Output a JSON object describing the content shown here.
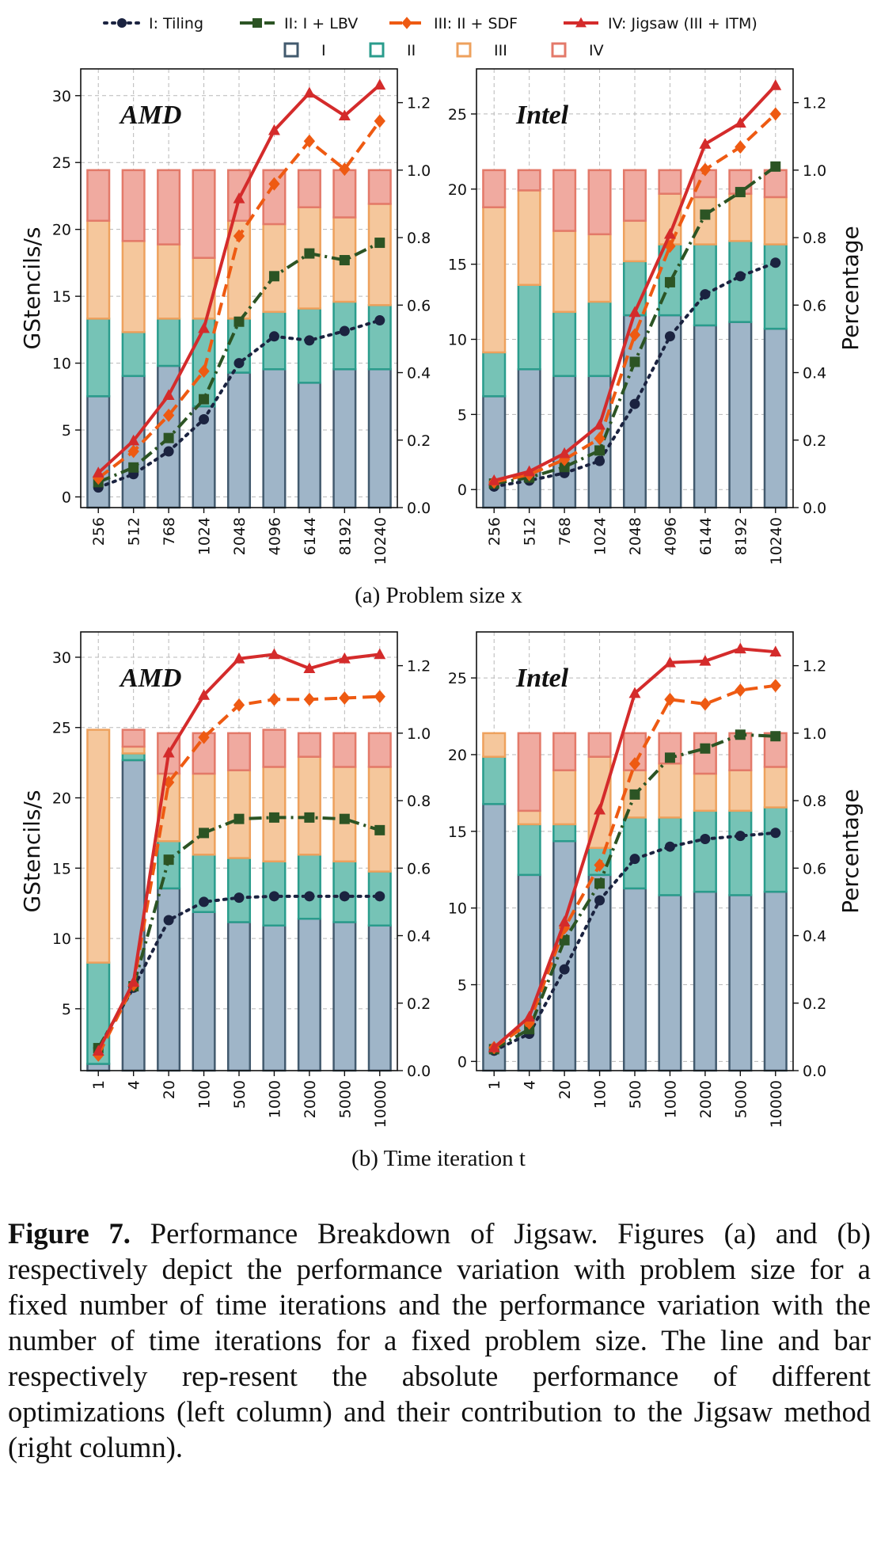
{
  "legend": {
    "lines": [
      {
        "name": "I: Tiling",
        "color": "#1b2340",
        "dash": "3,7",
        "marker": "circle"
      },
      {
        "name": "II: I + LBV",
        "color": "#2c5424",
        "dash": "16,6,3,6",
        "marker": "square"
      },
      {
        "name": "III: II + SDF",
        "color": "#ee5a12",
        "dash": "16,8",
        "marker": "diamond"
      },
      {
        "name": "IV: Jigsaw (III + ITM)",
        "color": "#d42b2b",
        "dash": "",
        "marker": "triangle"
      }
    ],
    "bars": [
      {
        "name": "I",
        "fill": "#9fb5c8",
        "edge": "#425a6e"
      },
      {
        "name": "II",
        "fill": "#76c3b6",
        "edge": "#2a9c8c"
      },
      {
        "name": "III",
        "fill": "#f5c79c",
        "edge": "#eea15d"
      },
      {
        "name": "IV",
        "fill": "#f0aaa0",
        "edge": "#e37969"
      }
    ]
  },
  "subcaptions": {
    "a": "(a) Problem size x",
    "b": "(b) Time iteration t"
  },
  "caption": {
    "label": "Figure 7.",
    "text": "Performance Breakdown of Jigsaw. Figures (a) and (b) respectively depict the performance variation with problem size for a fixed number of time iterations and the performance variation with the number of time iterations for a fixed problem size. The line and bar respectively rep-resent the absolute performance of different optimizations (left column) and their contribution to the Jigsaw method (right column)."
  },
  "chart_data": [
    {
      "type": "bar+line",
      "title": "AMD",
      "ylabel": "GStencils/s",
      "y2label": "",
      "categories": [
        "256",
        "512",
        "768",
        "1024",
        "2048",
        "4096",
        "6144",
        "8192",
        "10240"
      ],
      "ylim": [
        -0.8,
        32
      ],
      "yticks": [
        0,
        5,
        10,
        15,
        20,
        25,
        30
      ],
      "y2lim": [
        0,
        1.3
      ],
      "y2ticks": [
        0.0,
        0.2,
        0.4,
        0.6,
        0.8,
        1.0,
        1.2
      ],
      "grid": true,
      "lines": [
        {
          "name": "I: Tiling",
          "values": [
            0.7,
            1.7,
            3.4,
            5.8,
            10.0,
            12.0,
            11.7,
            12.4,
            13.2
          ]
        },
        {
          "name": "II: I + LBV",
          "values": [
            1.1,
            2.2,
            4.4,
            7.3,
            13.1,
            16.5,
            18.2,
            17.7,
            19.0
          ]
        },
        {
          "name": "III: II + SDF",
          "values": [
            1.4,
            3.4,
            6.1,
            9.4,
            19.5,
            23.4,
            26.6,
            24.5,
            28.1
          ]
        },
        {
          "name": "IV: Jigsaw (III + ITM)",
          "values": [
            1.8,
            4.2,
            7.6,
            12.6,
            22.3,
            27.4,
            30.2,
            28.5,
            30.8
          ]
        }
      ],
      "bars": [
        {
          "name": "I",
          "values": [
            0.33,
            0.39,
            0.42,
            0.3,
            0.4,
            0.41,
            0.37,
            0.41,
            0.41
          ]
        },
        {
          "name": "II",
          "values": [
            0.23,
            0.13,
            0.14,
            0.26,
            0.16,
            0.17,
            0.22,
            0.2,
            0.19
          ]
        },
        {
          "name": "III",
          "values": [
            0.29,
            0.27,
            0.22,
            0.18,
            0.29,
            0.26,
            0.3,
            0.25,
            0.3
          ]
        },
        {
          "name": "IV",
          "values": [
            0.15,
            0.21,
            0.22,
            0.26,
            0.15,
            0.16,
            0.11,
            0.14,
            0.1
          ]
        }
      ]
    },
    {
      "type": "bar+line",
      "title": "Intel",
      "ylabel": "",
      "y2label": "Percentage",
      "categories": [
        "256",
        "512",
        "768",
        "1024",
        "2048",
        "4096",
        "6144",
        "8192",
        "10240"
      ],
      "ylim": [
        -1.2,
        28
      ],
      "yticks": [
        0,
        5,
        10,
        15,
        20,
        25
      ],
      "y2lim": [
        0,
        1.3
      ],
      "y2ticks": [
        0.0,
        0.2,
        0.4,
        0.6,
        0.8,
        1.0,
        1.2
      ],
      "grid": true,
      "lines": [
        {
          "name": "I: Tiling",
          "values": [
            0.2,
            0.6,
            1.1,
            1.9,
            5.7,
            10.2,
            13.0,
            14.2,
            15.1
          ]
        },
        {
          "name": "II: I + LBV",
          "values": [
            0.4,
            0.8,
            1.5,
            2.6,
            8.5,
            13.8,
            18.3,
            19.8,
            21.5
          ]
        },
        {
          "name": "III: II + SDF",
          "values": [
            0.5,
            1.0,
            2.0,
            3.4,
            10.3,
            16.2,
            21.3,
            22.8,
            25.0
          ]
        },
        {
          "name": "IV: Jigsaw (III + ITM)",
          "values": [
            0.6,
            1.2,
            2.4,
            4.3,
            11.8,
            17.0,
            23.0,
            24.4,
            26.9
          ]
        }
      ],
      "bars": [
        {
          "name": "I",
          "values": [
            0.33,
            0.41,
            0.39,
            0.39,
            0.57,
            0.57,
            0.54,
            0.55,
            0.53
          ]
        },
        {
          "name": "II",
          "values": [
            0.13,
            0.25,
            0.19,
            0.22,
            0.16,
            0.21,
            0.24,
            0.24,
            0.25
          ]
        },
        {
          "name": "III",
          "values": [
            0.43,
            0.28,
            0.24,
            0.2,
            0.12,
            0.15,
            0.14,
            0.14,
            0.14
          ]
        },
        {
          "name": "IV",
          "values": [
            0.11,
            0.06,
            0.18,
            0.19,
            0.15,
            0.07,
            0.08,
            0.07,
            0.08
          ]
        }
      ]
    },
    {
      "type": "bar+line",
      "title": "AMD",
      "ylabel": "GStencils/s",
      "y2label": "",
      "categories": [
        "1",
        "4",
        "20",
        "100",
        "500",
        "1000",
        "2000",
        "5000",
        "10000"
      ],
      "ylim": [
        0.6,
        31.8
      ],
      "yticks": [
        5,
        10,
        15,
        20,
        25,
        30
      ],
      "y2lim": [
        0,
        1.3
      ],
      "y2ticks": [
        0.0,
        0.2,
        0.4,
        0.6,
        0.8,
        1.0,
        1.2
      ],
      "grid": true,
      "lines": [
        {
          "name": "I: Tiling",
          "values": [
            2.2,
            6.5,
            11.3,
            12.6,
            12.9,
            13.0,
            13.0,
            13.0,
            13.0
          ]
        },
        {
          "name": "II: I + LBV",
          "values": [
            2.2,
            6.6,
            15.6,
            17.5,
            18.5,
            18.6,
            18.6,
            18.5,
            17.7
          ]
        },
        {
          "name": "III: II + SDF",
          "values": [
            1.7,
            6.7,
            21.1,
            24.3,
            26.6,
            27.0,
            27.0,
            27.1,
            27.2
          ]
        },
        {
          "name": "IV: Jigsaw (III + ITM)",
          "values": [
            2.0,
            6.9,
            23.2,
            27.3,
            29.9,
            30.2,
            29.2,
            29.9,
            30.2
          ]
        }
      ],
      "bars": [
        {
          "name": "I",
          "values": [
            0.02,
            0.92,
            0.54,
            0.47,
            0.44,
            0.43,
            0.45,
            0.44,
            0.43
          ]
        },
        {
          "name": "II",
          "values": [
            0.3,
            0.02,
            0.14,
            0.17,
            0.19,
            0.19,
            0.19,
            0.18,
            0.16
          ]
        },
        {
          "name": "III",
          "values": [
            0.69,
            0.02,
            0.2,
            0.24,
            0.26,
            0.28,
            0.29,
            0.28,
            0.31
          ]
        },
        {
          "name": "IV",
          "values": [
            0.0,
            0.05,
            0.12,
            0.12,
            0.11,
            0.11,
            0.07,
            0.1,
            0.1
          ]
        }
      ]
    },
    {
      "type": "bar+line",
      "title": "Intel",
      "ylabel": "",
      "y2label": "Percentage",
      "categories": [
        "1",
        "4",
        "20",
        "100",
        "500",
        "1000",
        "2000",
        "5000",
        "10000"
      ],
      "ylim": [
        -0.6,
        28
      ],
      "yticks": [
        0,
        5,
        10,
        15,
        20,
        25
      ],
      "y2lim": [
        0,
        1.3
      ],
      "y2ticks": [
        0.0,
        0.2,
        0.4,
        0.6,
        0.8,
        1.0,
        1.2
      ],
      "grid": true,
      "lines": [
        {
          "name": "I: Tiling",
          "values": [
            0.7,
            1.8,
            6.0,
            10.5,
            13.2,
            14.0,
            14.5,
            14.7,
            14.9
          ]
        },
        {
          "name": "II: I + LBV",
          "values": [
            0.8,
            2.1,
            7.9,
            11.6,
            17.4,
            19.8,
            20.4,
            21.3,
            21.2
          ]
        },
        {
          "name": "III: II + SDF",
          "values": [
            0.9,
            2.5,
            8.7,
            12.8,
            19.4,
            23.6,
            23.3,
            24.2,
            24.5
          ]
        },
        {
          "name": "IV: Jigsaw (III + ITM)",
          "values": [
            0.9,
            2.9,
            9.1,
            16.4,
            24.0,
            26.0,
            26.1,
            26.9,
            26.7
          ]
        }
      ],
      "bars": [
        {
          "name": "I",
          "values": [
            0.79,
            0.58,
            0.68,
            0.58,
            0.54,
            0.52,
            0.53,
            0.52,
            0.53
          ]
        },
        {
          "name": "II",
          "values": [
            0.14,
            0.15,
            0.05,
            0.08,
            0.21,
            0.23,
            0.24,
            0.25,
            0.25
          ]
        },
        {
          "name": "III",
          "values": [
            0.07,
            0.04,
            0.16,
            0.27,
            0.14,
            0.16,
            0.11,
            0.12,
            0.12
          ]
        },
        {
          "name": "IV",
          "values": [
            0.0,
            0.23,
            0.11,
            0.07,
            0.11,
            0.09,
            0.12,
            0.11,
            0.1
          ]
        }
      ]
    }
  ]
}
